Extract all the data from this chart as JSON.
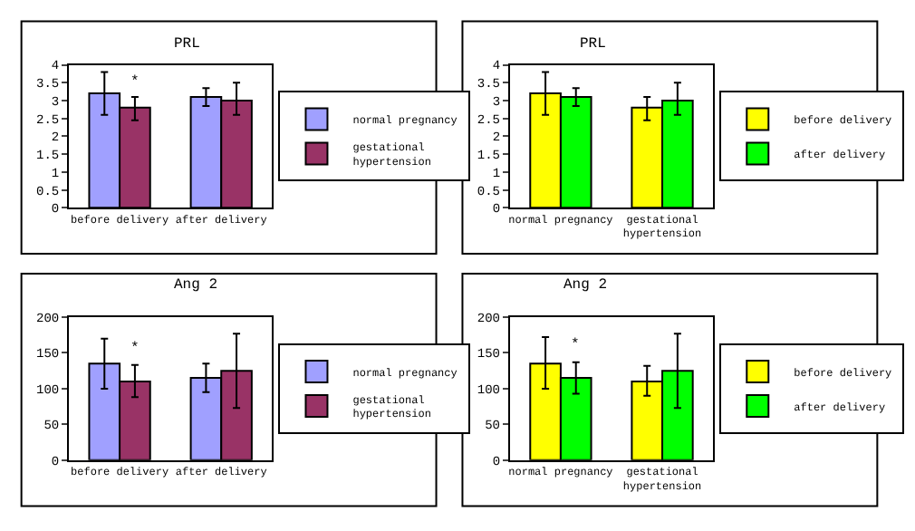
{
  "chart_data": [
    {
      "type": "bar",
      "title": "PRL",
      "categories": [
        "before delivery",
        "after delivery"
      ],
      "series": [
        {
          "name": "normal pregnancy",
          "color": "#a0a0ff",
          "values": [
            3.2,
            3.1
          ],
          "errors": [
            [
              2.6,
              3.8
            ],
            [
              2.85,
              3.35
            ]
          ]
        },
        {
          "name": "gestational hypertension",
          "color": "#993366",
          "values": [
            2.8,
            3.0
          ],
          "errors": [
            [
              2.45,
              3.1
            ],
            [
              2.6,
              3.5
            ]
          ]
        }
      ],
      "ylim": [
        0,
        4
      ],
      "yticks": [
        0,
        0.5,
        1,
        1.5,
        2,
        2.5,
        3,
        3.5,
        4
      ],
      "legend": "right",
      "annotations": [
        {
          "text": "*",
          "x": "before delivery",
          "y": 3.2
        }
      ]
    },
    {
      "type": "bar",
      "title": "PRL",
      "categories": [
        "normal pregnancy",
        "gestational hypertension"
      ],
      "series": [
        {
          "name": "before delivery",
          "color": "#ffff00",
          "values": [
            3.2,
            2.8
          ],
          "errors": [
            [
              2.6,
              3.8
            ],
            [
              2.45,
              3.1
            ]
          ]
        },
        {
          "name": "after delivery",
          "color": "#00ff00",
          "values": [
            3.1,
            3.0
          ],
          "errors": [
            [
              2.85,
              3.35
            ],
            [
              2.6,
              3.5
            ]
          ]
        }
      ],
      "ylim": [
        0,
        4
      ],
      "yticks": [
        0,
        0.5,
        1,
        1.5,
        2,
        2.5,
        3,
        3.5,
        4
      ],
      "legend": "right"
    },
    {
      "type": "bar",
      "title": "Ang 2",
      "categories": [
        "before delivery",
        "after delivery"
      ],
      "series": [
        {
          "name": "normal pregnancy",
          "color": "#a0a0ff",
          "values": [
            135,
            115
          ],
          "errors": [
            [
              100,
              170
            ],
            [
              95,
              135
            ]
          ]
        },
        {
          "name": "gestational hypertension",
          "color": "#993366",
          "values": [
            110,
            125
          ],
          "errors": [
            [
              88,
              133
            ],
            [
              73,
              177
            ]
          ]
        }
      ],
      "ylim": [
        0,
        200
      ],
      "yticks": [
        0,
        50,
        100,
        150,
        200
      ],
      "legend": "right",
      "annotations": [
        {
          "text": "*",
          "x": "before delivery",
          "y": 140
        }
      ]
    },
    {
      "type": "bar",
      "title": "Ang 2",
      "categories": [
        "normal pregnancy",
        "gestational hypertension"
      ],
      "series": [
        {
          "name": "before delivery",
          "color": "#ffff00",
          "values": [
            135,
            110
          ],
          "errors": [
            [
              100,
              172
            ],
            [
              90,
              132
            ]
          ]
        },
        {
          "name": "after delivery",
          "color": "#00ff00",
          "values": [
            115,
            125
          ],
          "errors": [
            [
              93,
              137
            ],
            [
              73,
              177
            ]
          ]
        }
      ],
      "ylim": [
        0,
        200
      ],
      "yticks": [
        0,
        50,
        100,
        150,
        200
      ],
      "legend": "right",
      "annotations": [
        {
          "text": "*",
          "x": "normal pregnancy",
          "y": 143
        }
      ]
    }
  ]
}
